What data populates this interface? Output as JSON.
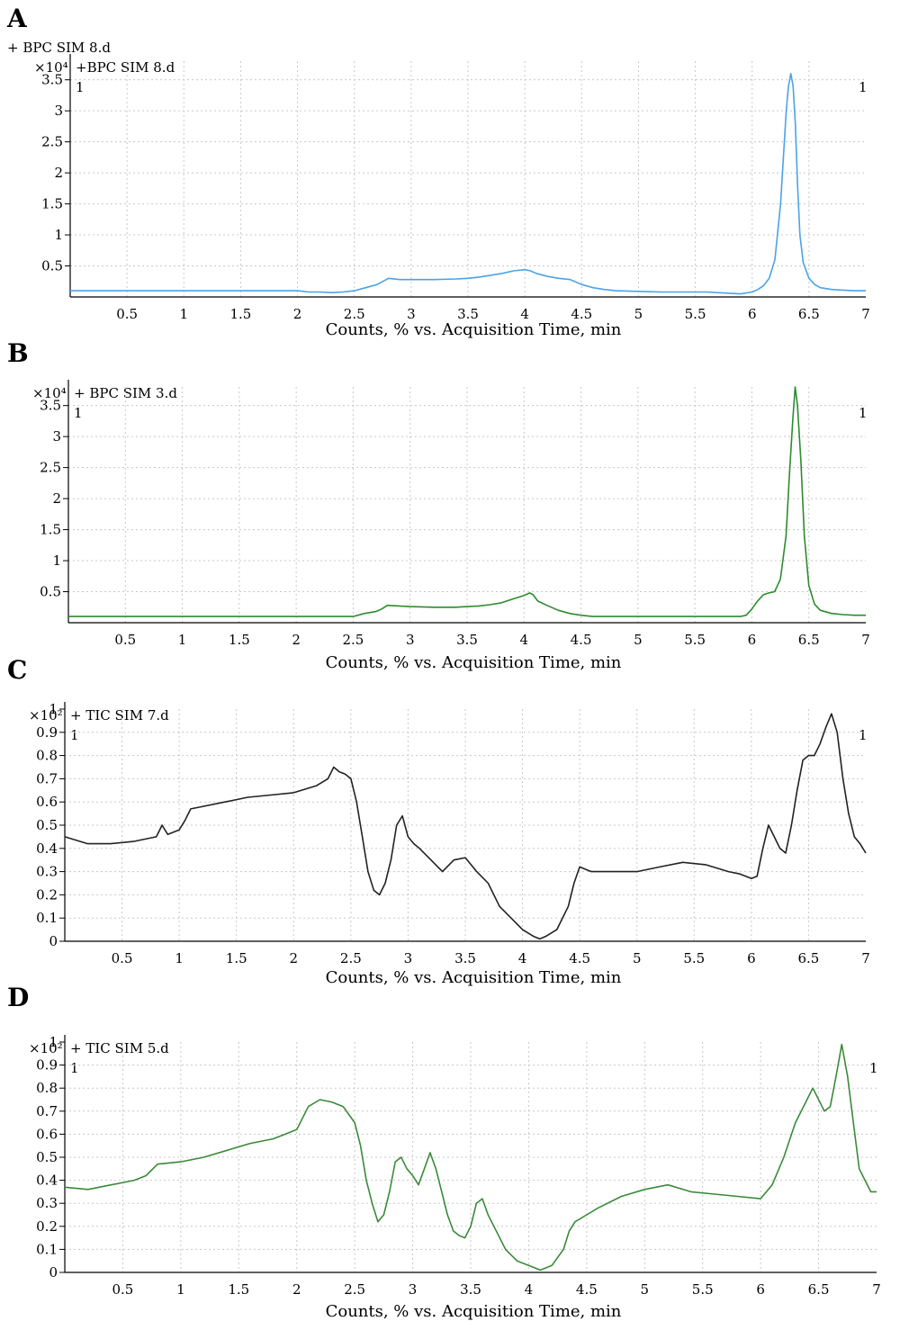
{
  "chart_data": [
    {
      "type": "line",
      "panel": "A",
      "overline": "+ BPC SIM 8.d",
      "legend": "+BPC SIM 8.d",
      "yscale_label": "×10⁴",
      "peak_marker_left": "1",
      "peak_marker_right": "1",
      "xlabel": "Counts, % vs. Acquisition Time, min",
      "xlim": [
        0,
        7
      ],
      "ylim": [
        0,
        3.8
      ],
      "xticks": [
        "0.5",
        "1",
        "1.5",
        "2",
        "2.5",
        "3",
        "3.5",
        "4",
        "4.5",
        "5",
        "5.5",
        "6",
        "6.5",
        "7"
      ],
      "yticks": [
        "0.5",
        "1",
        "1.5",
        "2",
        "2.5",
        "3",
        "3.5"
      ],
      "color": "#4aa3e8",
      "series": [
        {
          "x": [
            0,
            0.5,
            1,
            1.5,
            2,
            2.1,
            2.2,
            2.3,
            2.4,
            2.5,
            2.6,
            2.7,
            2.75,
            2.8,
            2.9,
            3.0,
            3.2,
            3.4,
            3.5,
            3.6,
            3.7,
            3.8,
            3.9,
            4.0,
            4.05,
            4.1,
            4.2,
            4.3,
            4.4,
            4.5,
            4.6,
            4.7,
            4.8,
            5.0,
            5.2,
            5.4,
            5.6,
            5.8,
            5.9,
            6.0,
            6.05,
            6.1,
            6.15,
            6.2,
            6.25,
            6.3,
            6.32,
            6.34,
            6.36,
            6.38,
            6.4,
            6.42,
            6.45,
            6.5,
            6.55,
            6.6,
            6.7,
            6.8,
            6.9,
            7.0
          ],
          "y": [
            0.1,
            0.1,
            0.1,
            0.1,
            0.1,
            0.08,
            0.08,
            0.07,
            0.08,
            0.1,
            0.15,
            0.2,
            0.25,
            0.3,
            0.28,
            0.28,
            0.28,
            0.29,
            0.3,
            0.32,
            0.35,
            0.38,
            0.42,
            0.44,
            0.42,
            0.38,
            0.33,
            0.3,
            0.28,
            0.2,
            0.15,
            0.12,
            0.1,
            0.09,
            0.08,
            0.08,
            0.08,
            0.06,
            0.05,
            0.08,
            0.12,
            0.18,
            0.3,
            0.6,
            1.5,
            3.0,
            3.4,
            3.6,
            3.4,
            2.8,
            1.8,
            1.0,
            0.55,
            0.3,
            0.2,
            0.15,
            0.12,
            0.11,
            0.1,
            0.1
          ]
        }
      ]
    },
    {
      "type": "line",
      "panel": "B",
      "overline": "",
      "legend": "+ BPC SIM 3.d",
      "yscale_label": "×10⁴",
      "peak_marker_left": "1",
      "peak_marker_right": "1",
      "xlabel": "Counts, % vs. Acquisition Time, min",
      "xlim": [
        0,
        7
      ],
      "ylim": [
        0,
        3.8
      ],
      "xticks": [
        "0.5",
        "1",
        "1.5",
        "2",
        "2.5",
        "3",
        "3.5",
        "4",
        "4.5",
        "5",
        "5.5",
        "6",
        "6.5",
        "7"
      ],
      "yticks": [
        "0.5",
        "1",
        "1.5",
        "2",
        "2.5",
        "3",
        "3.5"
      ],
      "color": "#2e8b2e",
      "series": [
        {
          "x": [
            0,
            0.5,
            1,
            1.5,
            2,
            2.4,
            2.5,
            2.6,
            2.7,
            2.75,
            2.8,
            2.9,
            3.0,
            3.2,
            3.4,
            3.5,
            3.6,
            3.7,
            3.8,
            3.9,
            4.0,
            4.05,
            4.08,
            4.12,
            4.2,
            4.3,
            4.4,
            4.5,
            4.6,
            4.8,
            5.0,
            5.5,
            5.8,
            5.9,
            5.95,
            6.0,
            6.05,
            6.1,
            6.15,
            6.2,
            6.25,
            6.3,
            6.33,
            6.36,
            6.38,
            6.4,
            6.43,
            6.46,
            6.5,
            6.55,
            6.6,
            6.7,
            6.8,
            6.9,
            7.0
          ],
          "y": [
            0.1,
            0.1,
            0.1,
            0.1,
            0.1,
            0.1,
            0.1,
            0.15,
            0.18,
            0.22,
            0.28,
            0.27,
            0.26,
            0.25,
            0.25,
            0.26,
            0.27,
            0.29,
            0.32,
            0.38,
            0.44,
            0.48,
            0.45,
            0.35,
            0.28,
            0.2,
            0.15,
            0.12,
            0.1,
            0.1,
            0.1,
            0.1,
            0.1,
            0.1,
            0.12,
            0.22,
            0.35,
            0.45,
            0.48,
            0.5,
            0.7,
            1.4,
            2.4,
            3.3,
            3.8,
            3.5,
            2.6,
            1.4,
            0.6,
            0.3,
            0.2,
            0.15,
            0.13,
            0.12,
            0.12
          ]
        }
      ]
    },
    {
      "type": "line",
      "panel": "C",
      "overline": "",
      "legend": "+ TIC SIM 7.d",
      "yscale_label": "×10²",
      "peak_marker_left": "1",
      "peak_marker_right": "1",
      "xlabel": "Counts, % vs. Acquisition Time, min",
      "xlim": [
        0,
        7
      ],
      "ylim": [
        0,
        1
      ],
      "xticks": [
        "0.5",
        "1",
        "1.5",
        "2",
        "2.5",
        "3",
        "3.5",
        "4",
        "4.5",
        "5",
        "5.5",
        "6",
        "6.5",
        "7"
      ],
      "yticks": [
        "0",
        "0.1",
        "0.2",
        "0.3",
        "0.4",
        "0.5",
        "0.6",
        "0.7",
        "0.8",
        "0.9",
        "1"
      ],
      "color": "#222222",
      "series": [
        {
          "x": [
            0,
            0.2,
            0.4,
            0.6,
            0.8,
            0.85,
            0.9,
            1.0,
            1.05,
            1.1,
            1.2,
            1.4,
            1.6,
            1.8,
            2.0,
            2.2,
            2.3,
            2.35,
            2.4,
            2.45,
            2.5,
            2.55,
            2.6,
            2.65,
            2.7,
            2.75,
            2.8,
            2.85,
            2.9,
            2.95,
            3.0,
            3.05,
            3.1,
            3.2,
            3.3,
            3.4,
            3.5,
            3.6,
            3.7,
            3.8,
            3.9,
            4.0,
            4.1,
            4.15,
            4.2,
            4.3,
            4.4,
            4.45,
            4.5,
            4.6,
            4.8,
            5.0,
            5.2,
            5.4,
            5.6,
            5.8,
            5.9,
            6.0,
            6.05,
            6.1,
            6.15,
            6.2,
            6.25,
            6.3,
            6.35,
            6.4,
            6.45,
            6.5,
            6.55,
            6.6,
            6.65,
            6.7,
            6.75,
            6.8,
            6.85,
            6.9,
            6.95,
            7.0
          ],
          "y": [
            0.45,
            0.42,
            0.42,
            0.43,
            0.45,
            0.5,
            0.46,
            0.48,
            0.52,
            0.57,
            0.58,
            0.6,
            0.62,
            0.63,
            0.64,
            0.67,
            0.7,
            0.75,
            0.73,
            0.72,
            0.7,
            0.6,
            0.45,
            0.3,
            0.22,
            0.2,
            0.25,
            0.35,
            0.5,
            0.54,
            0.45,
            0.42,
            0.4,
            0.35,
            0.3,
            0.35,
            0.36,
            0.3,
            0.25,
            0.15,
            0.1,
            0.05,
            0.02,
            0.01,
            0.02,
            0.05,
            0.15,
            0.25,
            0.32,
            0.3,
            0.3,
            0.3,
            0.32,
            0.34,
            0.33,
            0.3,
            0.29,
            0.27,
            0.28,
            0.4,
            0.5,
            0.45,
            0.4,
            0.38,
            0.5,
            0.65,
            0.78,
            0.8,
            0.8,
            0.85,
            0.92,
            0.98,
            0.9,
            0.7,
            0.55,
            0.45,
            0.42,
            0.38
          ]
        }
      ]
    },
    {
      "type": "line",
      "panel": "D",
      "overline": "",
      "legend": "+ TIC SIM 5.d",
      "yscale_label": "×10²",
      "peak_marker_left": "1",
      "peak_marker_right": "1",
      "xlabel": "Counts, % vs. Acquisition Time, min",
      "xlim": [
        0,
        7
      ],
      "ylim": [
        0,
        1
      ],
      "xticks": [
        "0.5",
        "1",
        "1.5",
        "2",
        "2.5",
        "3",
        "3.5",
        "4",
        "4.5",
        "5",
        "5.5",
        "6",
        "6.5",
        "7"
      ],
      "yticks": [
        "0",
        "0.1",
        "0.2",
        "0.3",
        "0.4",
        "0.5",
        "0.6",
        "0.7",
        "0.8",
        "0.9",
        "1"
      ],
      "color": "#3a8a3a",
      "series": [
        {
          "x": [
            0,
            0.2,
            0.4,
            0.6,
            0.7,
            0.8,
            1.0,
            1.2,
            1.4,
            1.6,
            1.8,
            1.9,
            2.0,
            2.1,
            2.2,
            2.3,
            2.4,
            2.5,
            2.55,
            2.6,
            2.65,
            2.7,
            2.75,
            2.8,
            2.85,
            2.9,
            2.95,
            3.0,
            3.05,
            3.1,
            3.15,
            3.2,
            3.25,
            3.3,
            3.35,
            3.4,
            3.45,
            3.5,
            3.55,
            3.6,
            3.65,
            3.7,
            3.8,
            3.9,
            4.0,
            4.1,
            4.15,
            4.2,
            4.3,
            4.35,
            4.4,
            4.5,
            4.6,
            4.8,
            5.0,
            5.2,
            5.4,
            5.6,
            5.8,
            6.0,
            6.1,
            6.2,
            6.3,
            6.4,
            6.45,
            6.5,
            6.55,
            6.6,
            6.65,
            6.7,
            6.75,
            6.8,
            6.85,
            6.9,
            6.95,
            7.0
          ],
          "y": [
            0.37,
            0.36,
            0.38,
            0.4,
            0.42,
            0.47,
            0.48,
            0.5,
            0.53,
            0.56,
            0.58,
            0.6,
            0.62,
            0.72,
            0.75,
            0.74,
            0.72,
            0.65,
            0.55,
            0.4,
            0.3,
            0.22,
            0.25,
            0.35,
            0.48,
            0.5,
            0.45,
            0.42,
            0.38,
            0.45,
            0.52,
            0.45,
            0.35,
            0.25,
            0.18,
            0.16,
            0.15,
            0.2,
            0.3,
            0.32,
            0.25,
            0.2,
            0.1,
            0.05,
            0.03,
            0.01,
            0.02,
            0.03,
            0.1,
            0.18,
            0.22,
            0.25,
            0.28,
            0.33,
            0.36,
            0.38,
            0.35,
            0.34,
            0.33,
            0.32,
            0.38,
            0.5,
            0.65,
            0.75,
            0.8,
            0.75,
            0.7,
            0.72,
            0.85,
            0.99,
            0.85,
            0.65,
            0.45,
            0.4,
            0.35,
            0.35
          ]
        }
      ]
    }
  ]
}
